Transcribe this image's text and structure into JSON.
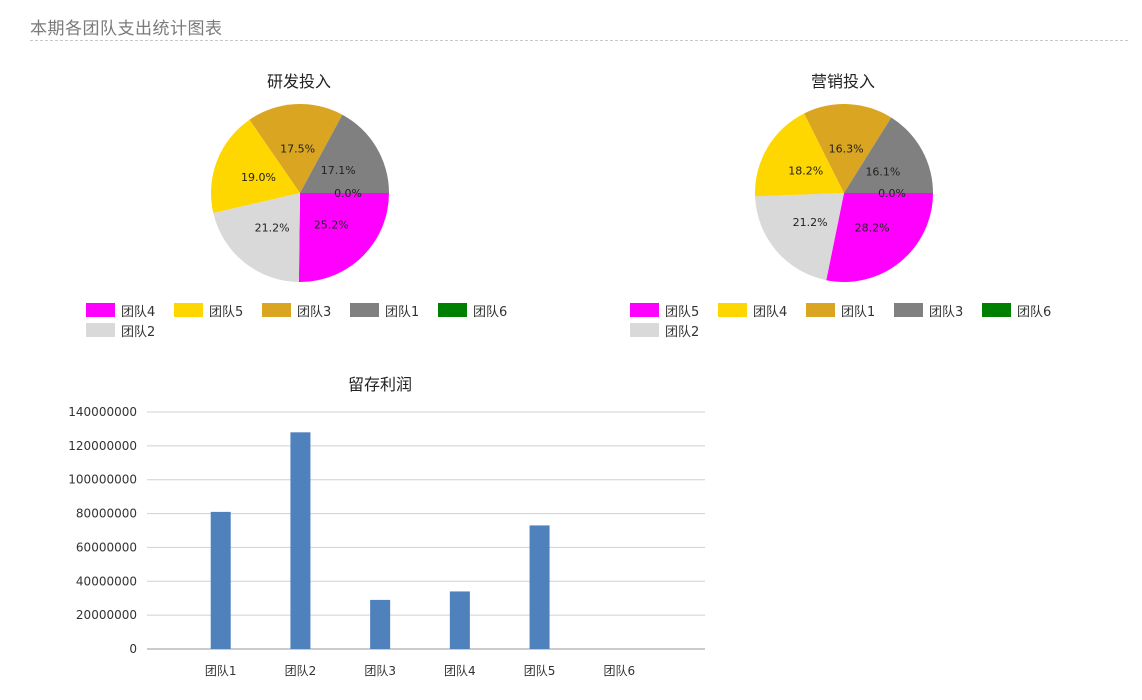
{
  "page": {
    "title": "本期各团队支出统计图表"
  },
  "chart_data": [
    {
      "type": "pie",
      "title": "研发投入",
      "slices": [
        {
          "name": "团队4",
          "value": 25.2,
          "label": "25.2%",
          "color": "#ff00ff"
        },
        {
          "name": "团队2",
          "value": 21.2,
          "label": "21.2%",
          "color": "#d9d9d9"
        },
        {
          "name": "团队5",
          "value": 19.0,
          "label": "19.0%",
          "color": "#ffd700"
        },
        {
          "name": "团队3",
          "value": 17.5,
          "label": "17.5%",
          "color": "#daa520"
        },
        {
          "name": "团队1",
          "value": 17.1,
          "label": "17.1%",
          "color": "#808080"
        },
        {
          "name": "团队6",
          "value": 0.0,
          "label": "0.0%",
          "color": "#008000"
        }
      ],
      "legend": [
        "团队4",
        "团队5",
        "团队3",
        "团队1",
        "团队6",
        "团队2"
      ]
    },
    {
      "type": "pie",
      "title": "营销投入",
      "slices": [
        {
          "name": "团队5",
          "value": 28.2,
          "label": "28.2%",
          "color": "#ff00ff"
        },
        {
          "name": "团队2",
          "value": 21.2,
          "label": "21.2%",
          "color": "#d9d9d9"
        },
        {
          "name": "团队4",
          "value": 18.2,
          "label": "18.2%",
          "color": "#ffd700"
        },
        {
          "name": "团队1",
          "value": 16.3,
          "label": "16.3%",
          "color": "#daa520"
        },
        {
          "name": "团队3",
          "value": 16.1,
          "label": "16.1%",
          "color": "#808080"
        },
        {
          "name": "团队6",
          "value": 0.0,
          "label": "0.0%",
          "color": "#008000"
        }
      ],
      "legend": [
        "团队5",
        "团队4",
        "团队1",
        "团队3",
        "团队6",
        "团队2"
      ]
    },
    {
      "type": "bar",
      "title": "留存利润",
      "categories": [
        "团队1",
        "团队2",
        "团队3",
        "团队4",
        "团队5",
        "团队6"
      ],
      "values": [
        81000000,
        128000000,
        29000000,
        34000000,
        73000000,
        0
      ],
      "ylim": [
        0,
        140000000
      ],
      "yticks": [
        0,
        20000000,
        40000000,
        60000000,
        80000000,
        100000000,
        120000000,
        140000000
      ],
      "bar_color": "#4f81bd",
      "grid": true
    }
  ]
}
